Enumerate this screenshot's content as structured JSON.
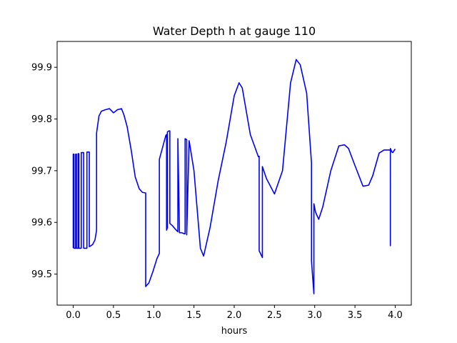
{
  "chart_data": {
    "type": "line",
    "title": "Water Depth h at gauge 110",
    "xlabel": "hours",
    "ylabel": "",
    "xlim": [
      -0.2,
      4.2
    ],
    "ylim": [
      99.44,
      99.95
    ],
    "xticks": [
      0.0,
      0.5,
      1.0,
      1.5,
      2.0,
      2.5,
      3.0,
      3.5,
      4.0
    ],
    "xtick_labels": [
      "0.0",
      "0.5",
      "1.0",
      "1.5",
      "2.0",
      "2.5",
      "3.0",
      "3.5",
      "4.0"
    ],
    "yticks": [
      99.5,
      99.6,
      99.7,
      99.8,
      99.9
    ],
    "ytick_labels": [
      "99.5",
      "99.6",
      "99.7",
      "99.8",
      "99.9"
    ],
    "grid": false,
    "series": [
      {
        "color": "#0000ff",
        "x": [
          0.0,
          0.0,
          0.01,
          0.01,
          0.03,
          0.03,
          0.04,
          0.04,
          0.06,
          0.06,
          0.07,
          0.07,
          0.1,
          0.1,
          0.13,
          0.13,
          0.17,
          0.17,
          0.2,
          0.2,
          0.24,
          0.27,
          0.29,
          0.29,
          0.32,
          0.35,
          0.4,
          0.45,
          0.5,
          0.55,
          0.6,
          0.63,
          0.67,
          0.72,
          0.77,
          0.82,
          0.86,
          0.9,
          0.9,
          0.94,
          0.99,
          1.04,
          1.07,
          1.07,
          1.11,
          1.15,
          1.16,
          1.16,
          1.17,
          1.17,
          1.19,
          1.2,
          1.2,
          1.23,
          1.28,
          1.3,
          1.3,
          1.32,
          1.35,
          1.38,
          1.39,
          1.39,
          1.41,
          1.41,
          1.44,
          1.5,
          1.58,
          1.62,
          1.7,
          1.8,
          1.9,
          2.0,
          2.06,
          2.1,
          2.2,
          2.3,
          2.31,
          2.31,
          2.35,
          2.35,
          2.4,
          2.5,
          2.6,
          2.7,
          2.77,
          2.82,
          2.9,
          2.96,
          2.96,
          2.99,
          2.99,
          3.01,
          3.05,
          3.1,
          3.2,
          3.3,
          3.37,
          3.42,
          3.5,
          3.6,
          3.67,
          3.72,
          3.8,
          3.86,
          3.9,
          3.94,
          3.94,
          3.94,
          3.96,
          3.97,
          4.0
        ],
        "y": [
          99.55,
          99.732,
          99.732,
          99.55,
          99.55,
          99.732,
          99.732,
          99.55,
          99.55,
          99.733,
          99.733,
          99.55,
          99.55,
          99.735,
          99.735,
          99.55,
          99.55,
          99.736,
          99.736,
          99.553,
          99.557,
          99.566,
          99.585,
          99.773,
          99.806,
          99.815,
          99.818,
          99.82,
          99.812,
          99.818,
          99.82,
          99.808,
          99.785,
          99.74,
          99.688,
          99.665,
          99.658,
          99.657,
          99.476,
          99.483,
          99.505,
          99.53,
          99.54,
          99.722,
          99.745,
          99.768,
          99.77,
          99.585,
          99.59,
          99.775,
          99.777,
          99.777,
          99.598,
          99.594,
          99.585,
          99.582,
          99.762,
          99.58,
          99.58,
          99.578,
          99.578,
          99.762,
          99.76,
          99.576,
          99.758,
          99.7,
          99.55,
          99.535,
          99.59,
          99.68,
          99.755,
          99.845,
          99.87,
          99.86,
          99.77,
          99.727,
          99.728,
          99.545,
          99.532,
          99.708,
          99.685,
          99.655,
          99.7,
          99.87,
          99.915,
          99.905,
          99.85,
          99.715,
          99.525,
          99.462,
          99.636,
          99.62,
          99.606,
          99.63,
          99.7,
          99.748,
          99.75,
          99.743,
          99.71,
          99.67,
          99.672,
          99.69,
          99.734,
          99.74,
          99.74,
          99.74,
          99.555,
          99.743,
          99.736,
          99.735,
          99.742
        ]
      }
    ]
  }
}
